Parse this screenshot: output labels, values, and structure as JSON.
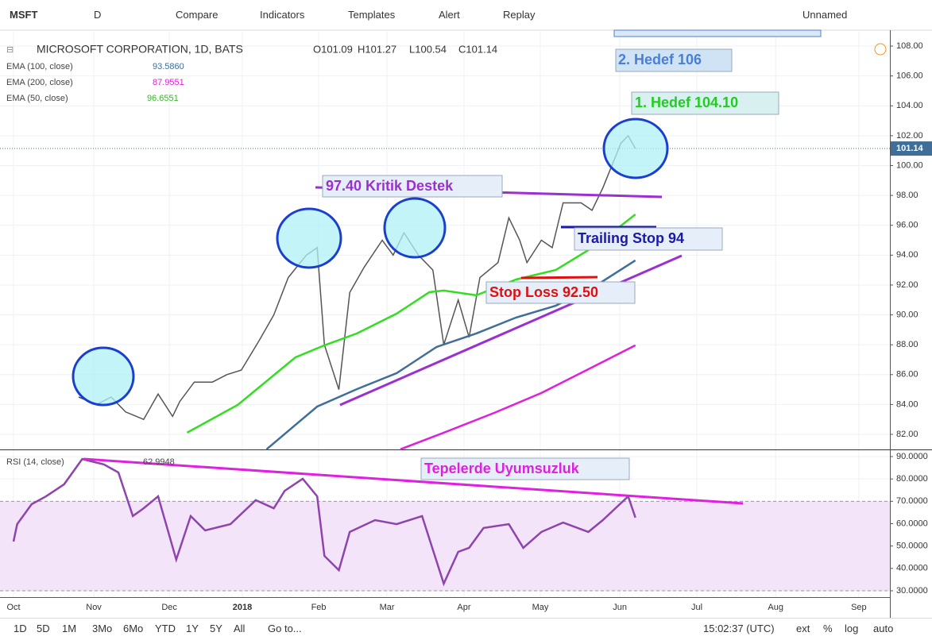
{
  "toolbar": {
    "symbol": "MSFT",
    "interval": "D",
    "buttons": [
      "Compare",
      "Indicators",
      "Templates",
      "Alert",
      "Replay"
    ],
    "layout": "Unnamed"
  },
  "legend": {
    "ohlc": [
      "O101.09",
      "H101.27",
      "L100.54",
      "C101.14"
    ]
  },
  "annotations": [
    "2. Hedef 106",
    "1. Hedef 104.10",
    "97.40 Kritik Destek",
    "Trailing Stop 94",
    "Stop Loss 92.50",
    "Tepelerde Uyumsuzluk"
  ],
  "bottom_bar": {
    "ranges": [
      "1D",
      "5D",
      "1M",
      "3Mo",
      "6Mo",
      "YTD",
      "1Y",
      "5Y",
      "All"
    ],
    "goto": "Go to...",
    "clock": "15:02:37 (UTC)",
    "options": [
      "ext",
      "%",
      "log",
      "auto"
    ]
  },
  "chart_data": [
    {
      "type": "line",
      "xlim": [
        -3.74,
        242.4
      ],
      "ylim": [
        80.99,
        108.96
      ],
      "xticks": [
        {
          "value": 0,
          "label": "Oct"
        },
        {
          "value": 22.2,
          "label": "Nov"
        },
        {
          "value": 43.1,
          "label": "Dec"
        },
        {
          "value": 63.3,
          "label": "2018"
        },
        {
          "value": 84.4,
          "label": "Feb"
        },
        {
          "value": 103.3,
          "label": "Mar"
        },
        {
          "value": 124.6,
          "label": "Apr"
        },
        {
          "value": 145.7,
          "label": "May"
        },
        {
          "value": 167.7,
          "label": "Jun"
        },
        {
          "value": 189,
          "label": "Jul"
        },
        {
          "value": 210.8,
          "label": "Aug"
        },
        {
          "value": 233.8,
          "label": "Sep"
        }
      ],
      "yticks": [
        {
          "value": 82,
          "label": "82.00"
        },
        {
          "value": 84,
          "label": "84.00"
        },
        {
          "value": 86,
          "label": "86.00"
        },
        {
          "value": 88,
          "label": "88.00"
        },
        {
          "value": 90,
          "label": "90.00"
        },
        {
          "value": 92,
          "label": "92.00"
        },
        {
          "value": 94,
          "label": "94.00"
        },
        {
          "value": 96,
          "label": "96.00"
        },
        {
          "value": 98,
          "label": "98.00"
        },
        {
          "value": 100,
          "label": "100.00"
        },
        {
          "value": 102,
          "label": "102.00"
        },
        {
          "value": 104,
          "label": "104.00"
        },
        {
          "value": 106,
          "label": "106.00"
        },
        {
          "value": 108,
          "label": "108.00"
        }
      ],
      "last_price": 101.14,
      "series": [
        {
          "name": "MICROSOFT CORPORATION, 1D, BATS",
          "color": "#555555",
          "x": [
            18,
            23,
            27,
            31,
            36,
            40,
            44,
            46,
            50,
            55,
            59,
            63,
            68,
            72,
            76,
            81,
            84,
            86,
            90,
            93,
            97,
            102,
            105,
            108,
            112,
            116,
            119,
            123,
            126,
            129,
            134,
            137,
            140,
            142,
            146,
            149,
            152,
            157,
            160,
            163,
            168,
            170,
            172
          ],
          "values": [
            84.5,
            84,
            84.5,
            83.5,
            83,
            84.7,
            83.2,
            84.2,
            85.5,
            85.5,
            86,
            86.3,
            88.3,
            90,
            92.5,
            94,
            94.5,
            88,
            85,
            91.5,
            93.2,
            95,
            94,
            95.5,
            94,
            93,
            88,
            91,
            88.5,
            92.5,
            93.5,
            96.5,
            95,
            93.5,
            95,
            94.5,
            97.5,
            97.5,
            97,
            98.5,
            101.5,
            102,
            101.14
          ]
        },
        {
          "name": "EMA (100, close)",
          "legend_value": "93.5860",
          "color": "#3f6e99",
          "x": [
            70,
            84,
            95,
            106,
            117,
            128,
            139,
            150,
            161,
            172
          ],
          "values": [
            81.0,
            83.86,
            85.03,
            86.1,
            87.85,
            88.76,
            89.82,
            90.62,
            91.95,
            93.65
          ]
        },
        {
          "name": "EMA (200, close)",
          "legend_value": "87.9551",
          "color": "#e020d8",
          "x": [
            107,
            119,
            133,
            146,
            159,
            172
          ],
          "values": [
            81.0,
            82.11,
            83.44,
            84.77,
            86.36,
            87.96
          ]
        },
        {
          "name": "EMA (50, close)",
          "legend_value": "96.6551",
          "color": "#33dd22",
          "x": [
            48,
            62,
            78,
            86,
            95,
            106,
            115,
            119,
            128,
            139,
            150,
            159,
            165,
            172
          ],
          "values": [
            82.11,
            83.97,
            87.16,
            87.96,
            88.76,
            90.09,
            91.52,
            91.63,
            91.31,
            92.37,
            93.01,
            94.34,
            95.4,
            96.73
          ]
        }
      ]
    },
    {
      "type": "line",
      "xlim": [
        -3.74,
        242.4
      ],
      "ylim": [
        27.16,
        92.84
      ],
      "band": [
        30,
        70
      ],
      "yticks": [
        {
          "value": 30,
          "label": "30.0000"
        },
        {
          "value": 40,
          "label": "40.0000"
        },
        {
          "value": 50,
          "label": "50.0000"
        },
        {
          "value": 60,
          "label": "60.0000"
        },
        {
          "value": 70,
          "label": "70.0000"
        },
        {
          "value": 80,
          "label": "80.0000"
        },
        {
          "value": 90,
          "label": "90.0000"
        }
      ],
      "series": [
        {
          "name": "RSI (14, close)",
          "legend_value": "62.9948",
          "color": "#8e44ad",
          "x": [
            0,
            1,
            5,
            9,
            14,
            19,
            25,
            29,
            33,
            36,
            40,
            45,
            49,
            53,
            60,
            67,
            72,
            75,
            80,
            84,
            86,
            90,
            93,
            100,
            106,
            113,
            119,
            123,
            126,
            130,
            137,
            141,
            146,
            152,
            159,
            163,
            170,
            172
          ],
          "values": [
            52,
            59.8,
            68.7,
            72.2,
            77.6,
            88.9,
            86.5,
            82.9,
            63.4,
            66.9,
            72.2,
            43.9,
            63.4,
            57,
            59.8,
            70.5,
            66.9,
            74.7,
            80.1,
            72.2,
            45.6,
            39.2,
            56.3,
            61.6,
            59.8,
            63.4,
            33.2,
            47.4,
            49.2,
            58.1,
            59.8,
            49.2,
            56.3,
            60.5,
            56.3,
            61.6,
            72.2,
            62.7
          ]
        }
      ]
    }
  ]
}
